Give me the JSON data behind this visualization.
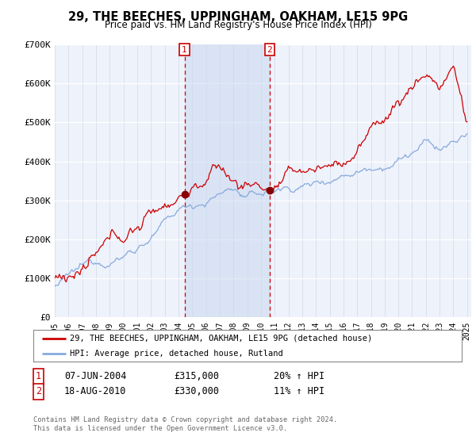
{
  "title": "29, THE BEECHES, UPPINGHAM, OAKHAM, LE15 9PG",
  "subtitle": "Price paid vs. HM Land Registry's House Price Index (HPI)",
  "legend_line1": "29, THE BEECHES, UPPINGHAM, OAKHAM, LE15 9PG (detached house)",
  "legend_line2": "HPI: Average price, detached house, Rutland",
  "transaction1_date": "07-JUN-2004",
  "transaction1_price": "£315,000",
  "transaction1_hpi": "20% ↑ HPI",
  "transaction2_date": "18-AUG-2010",
  "transaction2_price": "£330,000",
  "transaction2_hpi": "11% ↑ HPI",
  "footnote": "Contains HM Land Registry data © Crown copyright and database right 2024.\nThis data is licensed under the Open Government Licence v3.0.",
  "price_line_color": "#cc0000",
  "hpi_line_color": "#88aadd",
  "vline_color": "#cc0000",
  "background_color": "#ffffff",
  "plot_bg_color": "#eef2fb",
  "ylim": [
    0,
    700000
  ],
  "yticks": [
    0,
    100000,
    200000,
    300000,
    400000,
    500000,
    600000,
    700000
  ],
  "ytick_labels": [
    "£0",
    "£100K",
    "£200K",
    "£300K",
    "£400K",
    "£500K",
    "£600K",
    "£700K"
  ],
  "xstart_year": 1995,
  "xend_year": 2025,
  "transaction1_year": 2004.44,
  "transaction2_year": 2010.63,
  "transaction1_price_val": 315000,
  "transaction2_price_val": 330000,
  "marker_color": "#880000",
  "span_color": "#c8d8f0",
  "span_alpha": 0.55
}
